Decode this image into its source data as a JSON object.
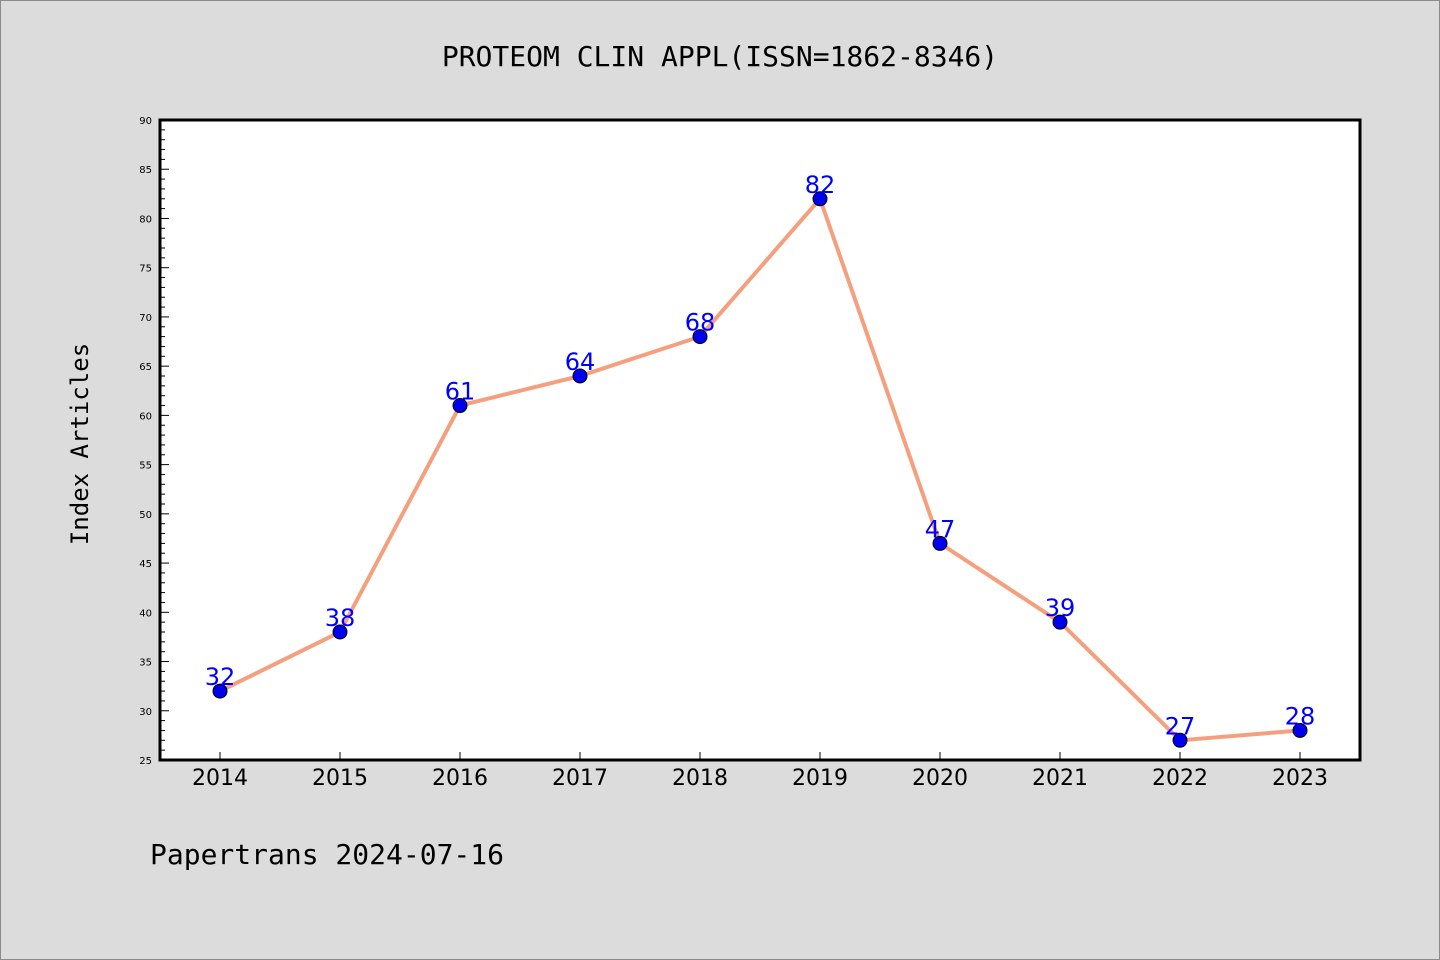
{
  "chart_data": {
    "type": "line",
    "title": "PROTEOM CLIN APPL(ISSN=1862-8346)",
    "xlabel": "",
    "ylabel": "Index Articles",
    "categories": [
      "2014",
      "2015",
      "2016",
      "2017",
      "2018",
      "2019",
      "2020",
      "2021",
      "2022",
      "2023"
    ],
    "values": [
      32,
      38,
      61,
      64,
      68,
      82,
      47,
      39,
      27,
      28
    ],
    "ylim": [
      25,
      90
    ],
    "yticks": [
      25,
      30,
      35,
      40,
      45,
      50,
      55,
      60,
      65,
      70,
      75,
      80,
      85,
      90
    ],
    "data_labels": true,
    "grid": false,
    "line_color": "#f4a07e",
    "marker_color": "#0000ee",
    "label_color": "#0000ff",
    "background_color": "#dcdcdc",
    "plot_background_color": "#ffffff"
  },
  "footer": {
    "text": "Papertrans 2024-07-16"
  }
}
